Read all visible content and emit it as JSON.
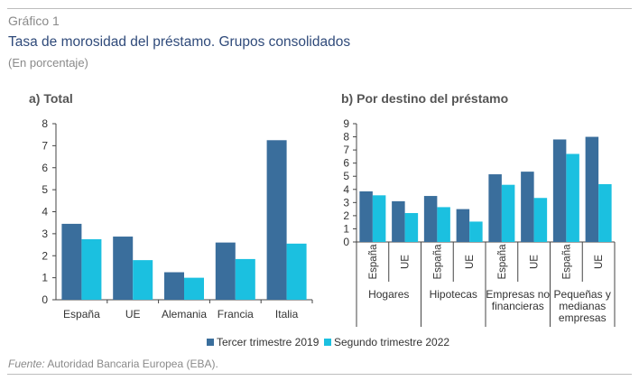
{
  "header": {
    "label": "Gráfico 1",
    "title": "Tasa de morosidad del préstamo. Grupos consolidados",
    "subtitle": "(En porcentaje)"
  },
  "footer": {
    "source_label": "Fuente:",
    "source_text": "Autoridad Bancaria Europea (EBA)."
  },
  "colors": {
    "series1": "#3a6e9c",
    "series2": "#1bc0e0",
    "axis": "#444444",
    "text": "#333333"
  },
  "chart_data": [
    {
      "type": "bar",
      "title": "a) Total",
      "categories": [
        "España",
        "UE",
        "Alemania",
        "Francia",
        "Italia"
      ],
      "ylim": [
        0,
        8
      ],
      "yticks": [
        0,
        1,
        2,
        3,
        4,
        5,
        6,
        7,
        8
      ],
      "series": [
        {
          "name": "Tercer trimestre  2019",
          "values": [
            3.45,
            2.87,
            1.25,
            2.6,
            7.25
          ]
        },
        {
          "name": "Segundo trimestre 2022",
          "values": [
            2.75,
            1.8,
            1.0,
            1.85,
            2.55
          ]
        }
      ],
      "legend": "bottom",
      "grid": false
    },
    {
      "type": "bar",
      "title": "b) Por destino del préstamo",
      "categories": [
        "España",
        "UE",
        "España",
        "UE",
        "España",
        "UE",
        "España",
        "UE"
      ],
      "groups": [
        {
          "label": [
            "Hogares"
          ]
        },
        {
          "label": [
            "Hipotecas"
          ]
        },
        {
          "label": [
            "Empresas no",
            "financieras"
          ]
        },
        {
          "label": [
            "Pequeñas y",
            "medianas",
            "empresas"
          ]
        }
      ],
      "ylim": [
        0,
        9
      ],
      "yticks": [
        0,
        1,
        2,
        3,
        4,
        5,
        6,
        7,
        8,
        9
      ],
      "series": [
        {
          "name": "Tercer trimestre  2019",
          "values": [
            3.85,
            3.1,
            3.5,
            2.5,
            5.15,
            5.35,
            7.8,
            8.0
          ]
        },
        {
          "name": "Segundo trimestre 2022",
          "values": [
            3.55,
            2.2,
            2.65,
            1.55,
            4.35,
            3.35,
            6.7,
            4.4
          ]
        }
      ],
      "legend": "bottom",
      "grid": false
    }
  ]
}
